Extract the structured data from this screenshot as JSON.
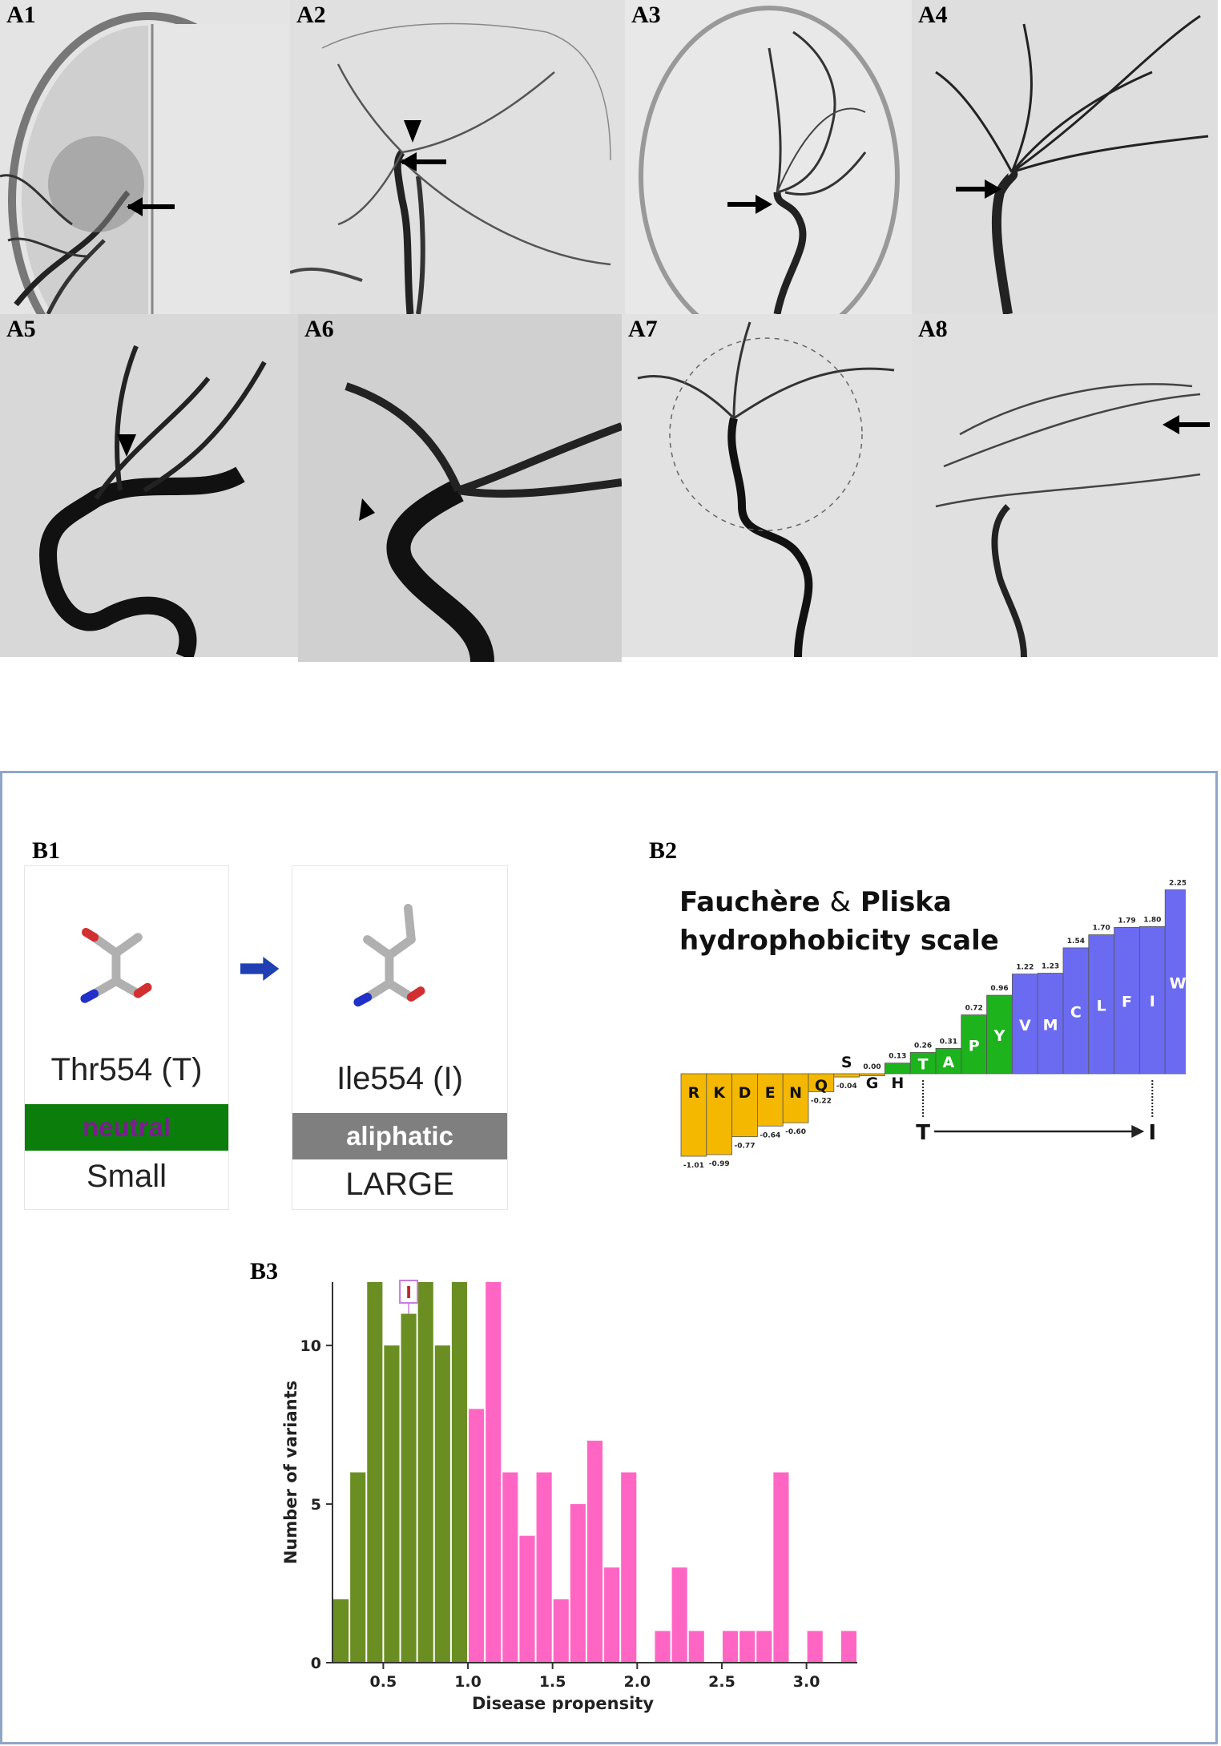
{
  "panelsA": [
    {
      "label": "A1"
    },
    {
      "label": "A2"
    },
    {
      "label": "A3"
    },
    {
      "label": "A4"
    },
    {
      "label": "A5"
    },
    {
      "label": "A6"
    },
    {
      "label": "A7"
    },
    {
      "label": "A8"
    }
  ],
  "b1": {
    "label": "B1",
    "from": {
      "name": "Thr554 (T)",
      "class": "neutral",
      "size": "Small"
    },
    "to": {
      "name": "Ile554 (I)",
      "class": "aliphatic",
      "size": "LARGE"
    },
    "colors": {
      "neutral_bar": "#0a7d0a",
      "neutral_text": "#7b1f8f",
      "aliphatic_bar": "#7f7f7f",
      "arrow": "#1f3fb3"
    }
  },
  "b2": {
    "label": "B2",
    "title_line1_a": "Fauchère",
    "title_amp": "&",
    "title_line1_b": "Pliska",
    "title_line2": "hydrophobicity scale",
    "from": "T",
    "to": "I",
    "colors": {
      "polar": "#f5b800",
      "mid": "#1db31d",
      "hydrophobic": "#6b6bf2"
    }
  },
  "chart_data": {
    "type": "bar",
    "label": "B3",
    "title": "",
    "xlabel": "Disease propensity",
    "ylabel": "Number of variants",
    "xlim": [
      0.2,
      3.3
    ],
    "ylim": [
      0,
      12
    ],
    "xticks": [
      "0.5",
      "1.0",
      "1.5",
      "2.0",
      "2.5",
      "3.0"
    ],
    "yticks": [
      "0",
      "5",
      "10"
    ],
    "bin_width": 0.1,
    "marker": {
      "text": "I",
      "x": 0.65,
      "value": 11
    },
    "series": [
      {
        "color": "#6b8e23",
        "x": [
          0.25,
          0.35,
          0.45,
          0.55,
          0.65,
          0.75,
          0.85,
          0.95
        ],
        "values": [
          2,
          6,
          12,
          10,
          11,
          12,
          10,
          12
        ]
      },
      {
        "color": "#ff66c4",
        "x": [
          1.05,
          1.15,
          1.25,
          1.35,
          1.45,
          1.55,
          1.65,
          1.75,
          1.85,
          1.95,
          2.15,
          2.25,
          2.35,
          2.55,
          2.65,
          2.75,
          2.85,
          3.05,
          3.25
        ],
        "values": [
          8,
          12,
          6,
          4,
          6,
          2,
          5,
          7,
          3,
          6,
          1,
          3,
          1,
          1,
          1,
          1,
          6,
          1,
          1
        ]
      }
    ]
  },
  "b2_scale": [
    {
      "letter": "R",
      "value": -1.01,
      "label": "-1.01",
      "group": "polar"
    },
    {
      "letter": "K",
      "value": -0.99,
      "label": "-0.99",
      "group": "polar"
    },
    {
      "letter": "D",
      "value": -0.77,
      "label": "-0.77",
      "group": "polar"
    },
    {
      "letter": "E",
      "value": -0.64,
      "label": "-0.64",
      "group": "polar"
    },
    {
      "letter": "N",
      "value": -0.6,
      "label": "-0.60",
      "group": "polar"
    },
    {
      "letter": "Q",
      "value": -0.22,
      "label": "-0.22",
      "group": "polar"
    },
    {
      "letter": "S",
      "value": -0.04,
      "label": "-0.04",
      "group": "polar"
    },
    {
      "letter": "G",
      "value": 0.0,
      "label": "0.00",
      "group": "polar"
    },
    {
      "letter": "H",
      "value": 0.13,
      "label": "0.13",
      "group": "mid"
    },
    {
      "letter": "T",
      "value": 0.26,
      "label": "0.26",
      "group": "mid"
    },
    {
      "letter": "A",
      "value": 0.31,
      "label": "0.31",
      "group": "mid"
    },
    {
      "letter": "P",
      "value": 0.72,
      "label": "0.72",
      "group": "mid"
    },
    {
      "letter": "Y",
      "value": 0.96,
      "label": "0.96",
      "group": "mid"
    },
    {
      "letter": "V",
      "value": 1.22,
      "label": "1.22",
      "group": "hydrophobic"
    },
    {
      "letter": "M",
      "value": 1.23,
      "label": "1.23",
      "group": "hydrophobic"
    },
    {
      "letter": "C",
      "value": 1.54,
      "label": "1.54",
      "group": "hydrophobic"
    },
    {
      "letter": "L",
      "value": 1.7,
      "label": "1.70",
      "group": "hydrophobic"
    },
    {
      "letter": "F",
      "value": 1.79,
      "label": "1.79",
      "group": "hydrophobic"
    },
    {
      "letter": "I",
      "value": 1.8,
      "label": "1.80",
      "group": "hydrophobic"
    },
    {
      "letter": "W",
      "value": 2.25,
      "label": "2.25",
      "group": "hydrophobic"
    }
  ]
}
